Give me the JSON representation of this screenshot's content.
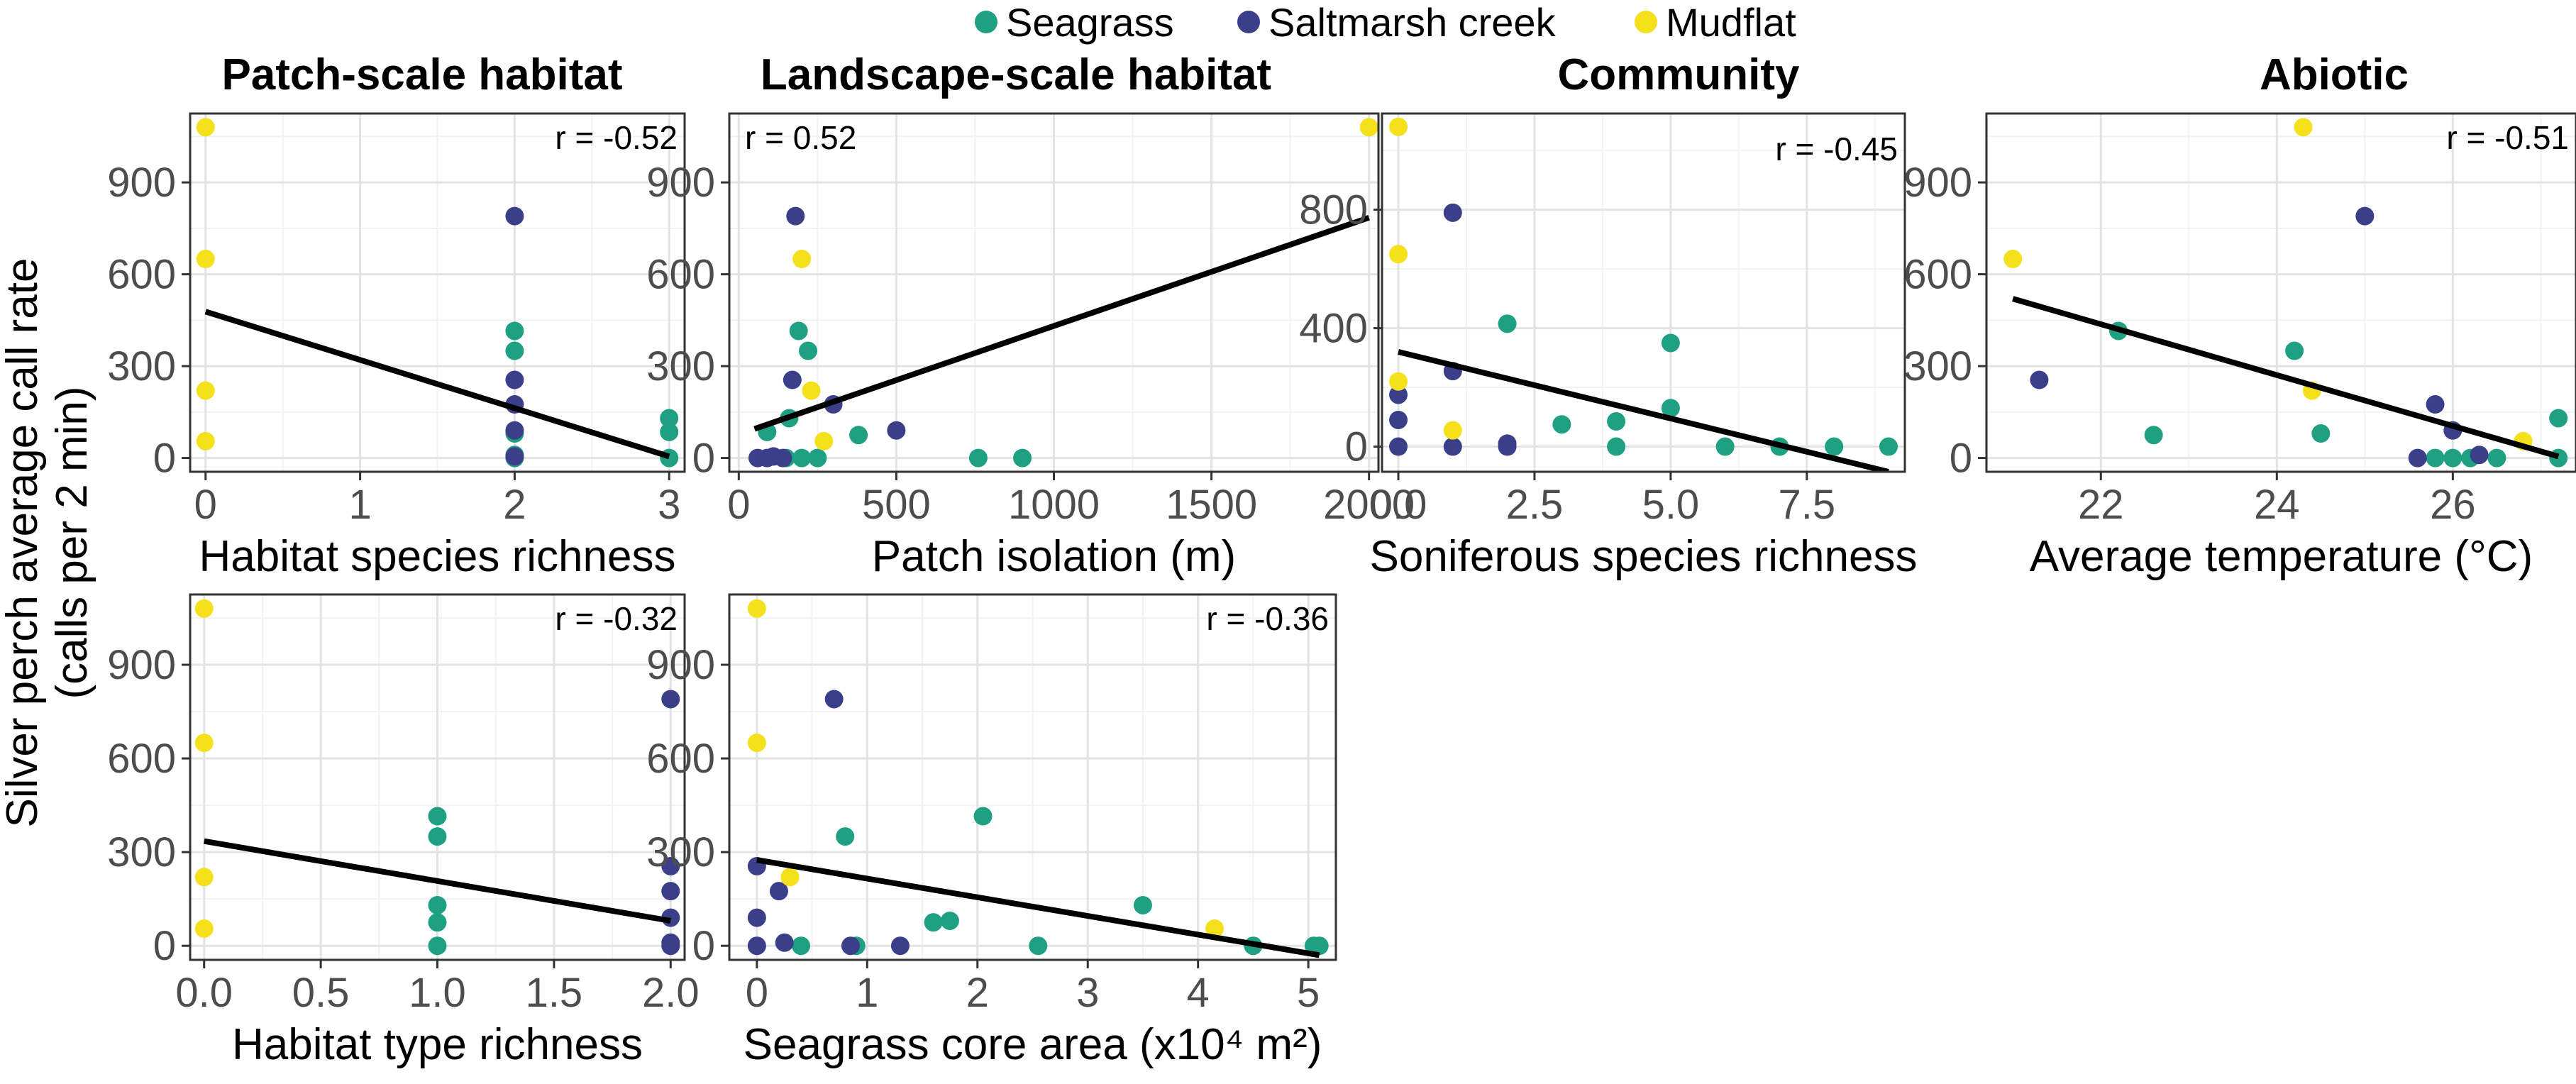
{
  "figure": {
    "y_axis_label_line1": "Silver perch average call rate",
    "y_axis_label_line2": "(calls per 2 min)"
  },
  "legend": {
    "entries": [
      {
        "name": "Seagrass",
        "color": "#1fa083"
      },
      {
        "name": "Saltmarsh creek",
        "color": "#3b3f8a"
      },
      {
        "name": "Mudflat",
        "color": "#f5e01c"
      }
    ],
    "placement": "top-center"
  },
  "chart_data": [
    {
      "type": "scatter",
      "title": "Patch-scale habitat",
      "xlabel": "Habitat species richness",
      "ylabel": "Silver perch average call rate (calls per 2 min)",
      "correlation_label": "r = -0.52",
      "xlim": [
        -0.1,
        3.1
      ],
      "ylim": [
        -45,
        1125
      ],
      "xticks": [
        0,
        1,
        2,
        3
      ],
      "xtick_labels": [
        "0",
        "1",
        "2",
        "3"
      ],
      "yticks": [
        0,
        300,
        600,
        900
      ],
      "ytick_labels": [
        "0",
        "300",
        "600",
        "900"
      ],
      "grid": true,
      "trend_line": {
        "x": [
          0,
          3
        ],
        "y": [
          478,
          5
        ]
      },
      "series": [
        {
          "name": "Seagrass",
          "x": [
            2,
            2,
            2,
            2,
            2,
            3,
            3,
            3
          ],
          "y": [
            415,
            350,
            80,
            10,
            0,
            130,
            85,
            0
          ]
        },
        {
          "name": "Saltmarsh creek",
          "x": [
            2,
            2,
            2,
            2,
            2
          ],
          "y": [
            790,
            255,
            175,
            90,
            5
          ]
        },
        {
          "name": "Mudflat",
          "x": [
            0,
            0,
            0,
            0
          ],
          "y": [
            1080,
            650,
            220,
            55
          ]
        }
      ]
    },
    {
      "type": "scatter",
      "title": "Landscape-scale habitat",
      "xlabel": "Patch isolation (m)",
      "ylabel": "",
      "correlation_label": "r = 0.52",
      "xlim": [
        -30,
        2030
      ],
      "ylim": [
        -45,
        1125
      ],
      "xticks": [
        0,
        500,
        1000,
        1500,
        2000
      ],
      "xtick_labels": [
        "0",
        "500",
        "1000",
        "1500",
        "2000"
      ],
      "yticks": [
        0,
        300,
        600,
        900
      ],
      "ytick_labels": [
        "0",
        "300",
        "600",
        "900"
      ],
      "grid": true,
      "trend_line": {
        "x": [
          50,
          2000
        ],
        "y": [
          95,
          785
        ]
      },
      "series": [
        {
          "name": "Seagrass",
          "x": [
            90,
            150,
            160,
            190,
            200,
            220,
            250,
            380,
            760,
            900
          ],
          "y": [
            85,
            0,
            130,
            415,
            0,
            350,
            0,
            75,
            0,
            0
          ]
        },
        {
          "name": "Saltmarsh creek",
          "x": [
            60,
            90,
            110,
            140,
            170,
            180,
            300,
            500
          ],
          "y": [
            0,
            0,
            5,
            0,
            255,
            790,
            175,
            90
          ]
        },
        {
          "name": "Mudflat",
          "x": [
            200,
            230,
            270,
            2000
          ],
          "y": [
            650,
            220,
            55,
            1080
          ]
        }
      ]
    },
    {
      "type": "scatter",
      "title": "Community",
      "xlabel": "Soniferous species richness",
      "ylabel": "",
      "correlation_label": "r = -0.45",
      "xlim": [
        -0.3,
        9.3
      ],
      "ylim": [
        -85,
        1125
      ],
      "xticks": [
        0,
        2.5,
        5,
        7.5
      ],
      "xtick_labels": [
        "0.0",
        "2.5",
        "5.0",
        "7.5"
      ],
      "yticks": [
        0,
        400,
        800
      ],
      "ytick_labels": [
        "0",
        "400",
        "800"
      ],
      "grid": true,
      "trend_line": {
        "x": [
          0,
          9
        ],
        "y": [
          320,
          -85
        ]
      },
      "series": [
        {
          "name": "Seagrass",
          "x": [
            2,
            3,
            4,
            4,
            5,
            5,
            6,
            7,
            8,
            9
          ],
          "y": [
            415,
            75,
            85,
            0,
            350,
            130,
            0,
            0,
            0,
            0
          ]
        },
        {
          "name": "Saltmarsh creek",
          "x": [
            0,
            0,
            0,
            1,
            1,
            1,
            2,
            2
          ],
          "y": [
            175,
            90,
            0,
            790,
            255,
            0,
            10,
            0
          ]
        },
        {
          "name": "Mudflat",
          "x": [
            0,
            0,
            0,
            1
          ],
          "y": [
            1080,
            650,
            220,
            55
          ]
        }
      ]
    },
    {
      "type": "scatter",
      "title": "Abiotic",
      "xlabel": "Average temperature (°C)",
      "ylabel": "",
      "correlation_label": "r = -0.51",
      "xlim": [
        20.7,
        27.4
      ],
      "ylim": [
        -45,
        1125
      ],
      "xticks": [
        22,
        24,
        26
      ],
      "xtick_labels": [
        "22",
        "24",
        "26"
      ],
      "yticks": [
        0,
        300,
        600,
        900
      ],
      "ytick_labels": [
        "0",
        "300",
        "600",
        "900"
      ],
      "grid": true,
      "trend_line": {
        "x": [
          21,
          27.2
        ],
        "y": [
          520,
          5
        ]
      },
      "series": [
        {
          "name": "Seagrass",
          "x": [
            22.2,
            22.6,
            24.2,
            24.5,
            25.8,
            26.0,
            26.2,
            26.5,
            27.2,
            27.2
          ],
          "y": [
            415,
            75,
            350,
            80,
            0,
            0,
            0,
            0,
            130,
            0
          ]
        },
        {
          "name": "Saltmarsh creek",
          "x": [
            21.3,
            25.0,
            25.6,
            25.8,
            26.0,
            26.3
          ],
          "y": [
            255,
            790,
            0,
            175,
            90,
            10
          ]
        },
        {
          "name": "Mudflat",
          "x": [
            21.0,
            24.3,
            24.4,
            26.8
          ],
          "y": [
            650,
            1080,
            220,
            55
          ]
        }
      ]
    },
    {
      "type": "scatter",
      "title": "",
      "xlabel": "Habitat type richness",
      "ylabel": "",
      "correlation_label": "r = -0.32",
      "xlim": [
        -0.06,
        2.06
      ],
      "ylim": [
        -45,
        1125
      ],
      "xticks": [
        0,
        0.5,
        1,
        1.5,
        2
      ],
      "xtick_labels": [
        "0.0",
        "0.5",
        "1.0",
        "1.5",
        "2.0"
      ],
      "yticks": [
        0,
        300,
        600,
        900
      ],
      "ytick_labels": [
        "0",
        "300",
        "600",
        "900"
      ],
      "grid": true,
      "trend_line": {
        "x": [
          0,
          2
        ],
        "y": [
          335,
          80
        ]
      },
      "series": [
        {
          "name": "Seagrass",
          "x": [
            1,
            1,
            1,
            1,
            1
          ],
          "y": [
            415,
            350,
            130,
            75,
            0
          ]
        },
        {
          "name": "Saltmarsh creek",
          "x": [
            2,
            2,
            2,
            2,
            2,
            2
          ],
          "y": [
            790,
            255,
            175,
            90,
            10,
            0
          ]
        },
        {
          "name": "Mudflat",
          "x": [
            0,
            0,
            0,
            0
          ],
          "y": [
            1080,
            650,
            220,
            55
          ]
        }
      ]
    },
    {
      "type": "scatter",
      "title": "",
      "xlabel": "Seagrass core area (x10⁴ m²)",
      "ylabel": "",
      "correlation_label": "r = -0.36",
      "xlim": [
        -0.25,
        5.25
      ],
      "ylim": [
        -45,
        1125
      ],
      "xticks": [
        0,
        1,
        2,
        3,
        4,
        5
      ],
      "xtick_labels": [
        "0",
        "1",
        "2",
        "3",
        "4",
        "5"
      ],
      "yticks": [
        0,
        300,
        600,
        900
      ],
      "ytick_labels": [
        "0",
        "300",
        "600",
        "900"
      ],
      "grid": true,
      "trend_line": {
        "x": [
          0,
          5.1
        ],
        "y": [
          275,
          -30
        ]
      },
      "series": [
        {
          "name": "Seagrass",
          "x": [
            0.4,
            0.8,
            0.9,
            1.6,
            1.75,
            2.05,
            2.55,
            3.5,
            4.5,
            5.05,
            5.1
          ],
          "y": [
            0,
            350,
            0,
            75,
            80,
            415,
            0,
            130,
            0,
            0,
            0
          ]
        },
        {
          "name": "Saltmarsh creek",
          "x": [
            0,
            0,
            0,
            0.2,
            0.25,
            0.7,
            0.85,
            1.3
          ],
          "y": [
            255,
            90,
            0,
            175,
            10,
            790,
            0,
            0
          ]
        },
        {
          "name": "Mudflat",
          "x": [
            0,
            0,
            0.3,
            4.15
          ],
          "y": [
            1080,
            650,
            220,
            55
          ]
        }
      ]
    }
  ]
}
